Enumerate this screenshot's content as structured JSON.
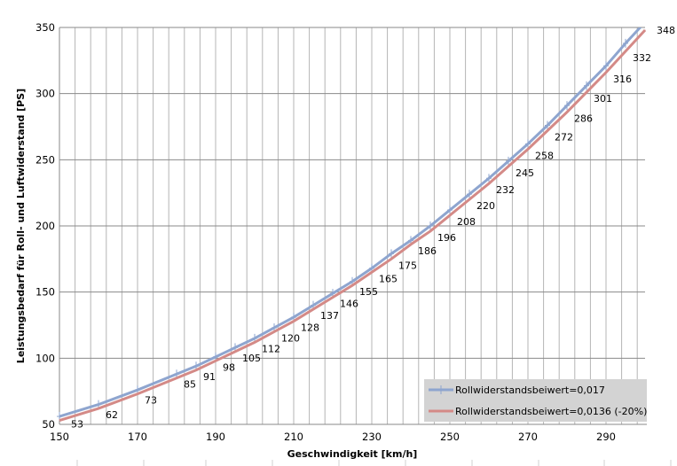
{
  "chart_data": {
    "type": "line",
    "title": "",
    "xlabel": "Geschwindigkeit [km/h]",
    "ylabel": "Leistungsbedarf für Roll- und Luftwiderstand [PS]",
    "xlim": [
      150,
      300
    ],
    "ylim": [
      50,
      350
    ],
    "x_ticks": [
      150,
      170,
      190,
      210,
      230,
      250,
      270,
      290
    ],
    "y_ticks": [
      50,
      100,
      150,
      200,
      250,
      300,
      350
    ],
    "grid": true,
    "legend_position": "bottom-right",
    "x": [
      150,
      160,
      170,
      180,
      185,
      190,
      195,
      200,
      205,
      210,
      215,
      220,
      225,
      230,
      235,
      240,
      245,
      250,
      255,
      260,
      265,
      270,
      275,
      280,
      285,
      290,
      295,
      300
    ],
    "series": [
      {
        "name": "Rollwiderstandsbeiwert=0,017",
        "color": "#8EA5CF",
        "values": [
          56,
          65,
          76,
          88,
          94,
          101,
          108,
          115,
          123,
          131,
          140,
          149,
          158,
          168,
          179,
          189,
          200,
          212,
          224,
          236,
          249,
          262,
          276,
          291,
          306,
          321,
          338,
          354
        ]
      },
      {
        "name": "Rollwiderstandsbeiwert=0,0136 (-20%)",
        "color": "#D48A87",
        "values": [
          53,
          62,
          73,
          85,
          91,
          98,
          105,
          112,
          120,
          128,
          137,
          146,
          155,
          165,
          175,
          186,
          196,
          208,
          220,
          232,
          245,
          258,
          272,
          286,
          301,
          316,
          332,
          348
        ],
        "data_labels": [
          "53",
          "62",
          "73",
          "85",
          "91",
          "98",
          "105",
          "112",
          "120",
          "128",
          "137",
          "146",
          "155",
          "165",
          "175",
          "186",
          "196",
          "208",
          "220",
          "232",
          "245",
          "258",
          "272",
          "286",
          "301",
          "316",
          "332",
          "348"
        ]
      }
    ]
  }
}
